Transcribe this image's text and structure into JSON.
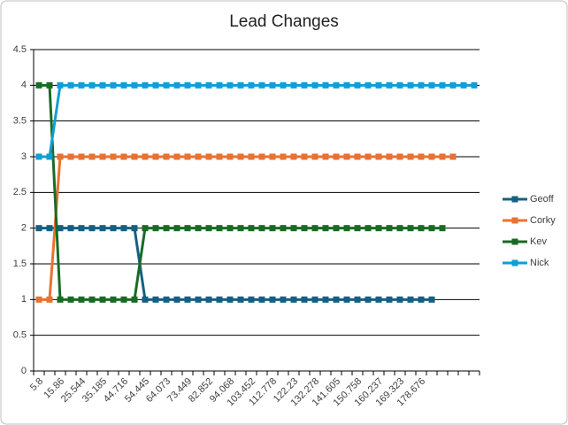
{
  "chart_data": {
    "type": "line",
    "title": "Lead Changes",
    "categories": [
      "5.8",
      null,
      "15.86",
      null,
      "25.544",
      null,
      "35.185",
      null,
      "44.716",
      null,
      "54.445",
      null,
      "64.073",
      null,
      "73.449",
      null,
      "82.852",
      null,
      "94.068",
      null,
      "103.452",
      null,
      "112.778",
      null,
      "122.23",
      null,
      "132.278",
      null,
      "141.605",
      null,
      "150.758",
      null,
      "160.237",
      null,
      "169.323",
      null,
      "178.676",
      null,
      null,
      null,
      null,
      null
    ],
    "series": [
      {
        "name": "Geoff",
        "color": "#156082",
        "values": [
          2,
          2,
          2,
          2,
          2,
          2,
          2,
          2,
          2,
          2,
          1,
          1,
          1,
          1,
          1,
          1,
          1,
          1,
          1,
          1,
          1,
          1,
          1,
          1,
          1,
          1,
          1,
          1,
          1,
          1,
          1,
          1,
          1,
          1,
          1,
          1,
          1,
          1,
          null,
          null,
          null,
          null
        ]
      },
      {
        "name": "Corky",
        "color": "#E97132",
        "values": [
          1,
          1,
          3,
          3,
          3,
          3,
          3,
          3,
          3,
          3,
          3,
          3,
          3,
          3,
          3,
          3,
          3,
          3,
          3,
          3,
          3,
          3,
          3,
          3,
          3,
          3,
          3,
          3,
          3,
          3,
          3,
          3,
          3,
          3,
          3,
          3,
          3,
          3,
          3,
          3,
          null,
          null
        ]
      },
      {
        "name": "Kev",
        "color": "#196B24",
        "values": [
          4,
          4,
          1,
          1,
          1,
          1,
          1,
          1,
          1,
          1,
          2,
          2,
          2,
          2,
          2,
          2,
          2,
          2,
          2,
          2,
          2,
          2,
          2,
          2,
          2,
          2,
          2,
          2,
          2,
          2,
          2,
          2,
          2,
          2,
          2,
          2,
          2,
          2,
          2,
          null,
          null,
          null
        ]
      },
      {
        "name": "Nick",
        "color": "#0F9ED5",
        "values": [
          3,
          3,
          4,
          4,
          4,
          4,
          4,
          4,
          4,
          4,
          4,
          4,
          4,
          4,
          4,
          4,
          4,
          4,
          4,
          4,
          4,
          4,
          4,
          4,
          4,
          4,
          4,
          4,
          4,
          4,
          4,
          4,
          4,
          4,
          4,
          4,
          4,
          4,
          4,
          4,
          4,
          4
        ]
      }
    ],
    "ylim": [
      0,
      4.5
    ],
    "yticks": [
      0,
      0.5,
      1,
      1.5,
      2,
      2.5,
      3,
      3.5,
      4,
      4.5
    ],
    "grid": true,
    "legend": "right"
  }
}
